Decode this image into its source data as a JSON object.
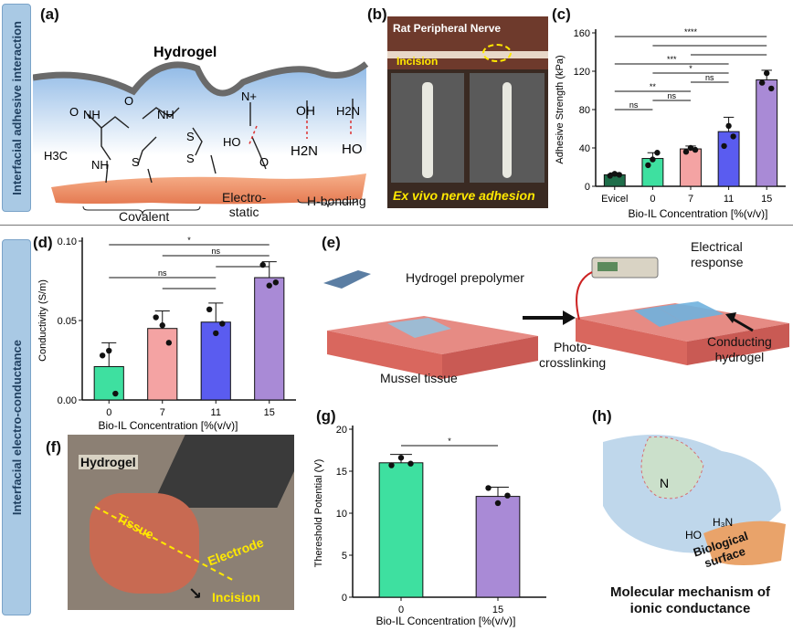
{
  "side_labels": {
    "top": "Interfacial adhesive interaction",
    "bottom": "Interfacial electro-conductance"
  },
  "panels": {
    "a": {
      "label": "(a)",
      "hydrogel": "Hydrogel",
      "covalent": "Covalent",
      "electrostatic": "Electro-\nstatic",
      "hbonding": "H-bonding",
      "atoms": [
        "O",
        "NH",
        "NH",
        "O",
        "H3C",
        "NH",
        "S",
        "S",
        "S",
        "HO",
        "O",
        "N+",
        "OH",
        "H2N",
        "HO",
        "H2N"
      ]
    },
    "b": {
      "label": "(b)",
      "title": "Rat Peripheral Nerve",
      "incision": "Incision",
      "caption": "Ex vivo nerve adhesion"
    },
    "c": {
      "label": "(c)"
    },
    "d": {
      "label": "(d)"
    },
    "e": {
      "label": "(e)",
      "prepolymer": "Hydrogel prepolymer",
      "electrical": "Electrical\nresponse",
      "photo": "Photo-\ncrosslinking",
      "mussel": "Mussel tissue",
      "conducting": "Conducting\nhydrogel"
    },
    "f": {
      "label": "(f)",
      "hydrogel": "Hydrogel",
      "tissue": "Tissue",
      "electrode": "Electrode",
      "incision": "Incision"
    },
    "g": {
      "label": "(g)"
    },
    "h": {
      "label": "(h)",
      "surface": "Biological\nsurface",
      "caption": "Molecular mechanism of\nionic conductance"
    }
  },
  "colors": {
    "green": "#3ee0a0",
    "pink": "#f4a3a3",
    "blue": "#5a5cf0",
    "purple": "#a98ad6",
    "darkgreen": "#1f6e4a"
  },
  "chart_data": [
    {
      "id": "c",
      "type": "bar",
      "categories": [
        "Evicel",
        "0",
        "7",
        "11",
        "15"
      ],
      "values": [
        12,
        29,
        39,
        57,
        111
      ],
      "errors": [
        2,
        6,
        3,
        15,
        10
      ],
      "points": [
        [
          11,
          13,
          12
        ],
        [
          22,
          28,
          35
        ],
        [
          36,
          40,
          38
        ],
        [
          42,
          63,
          52
        ],
        [
          108,
          118,
          102
        ]
      ],
      "colors": [
        "#1f6e4a",
        "#3ee0a0",
        "#f4a3a3",
        "#5a5cf0",
        "#a98ad6"
      ],
      "ylabel": "Adhesive Strength (kPa)",
      "xlabel": "Bio-IL Concentration [%(v/v)]",
      "ylim": [
        0,
        160
      ],
      "yticks": [
        0,
        40,
        80,
        120,
        160
      ],
      "sig": [
        {
          "from": 0,
          "to": 4,
          "text": "****"
        },
        {
          "from": 1,
          "to": 4,
          "text": ""
        },
        {
          "from": 2,
          "to": 4,
          "text": ""
        },
        {
          "from": 0,
          "to": 3,
          "text": "***"
        },
        {
          "from": 1,
          "to": 3,
          "text": "*"
        },
        {
          "from": 2,
          "to": 3,
          "text": "ns"
        },
        {
          "from": 0,
          "to": 2,
          "text": "**"
        },
        {
          "from": 1,
          "to": 2,
          "text": "ns"
        },
        {
          "from": 0,
          "to": 1,
          "text": "ns"
        }
      ]
    },
    {
      "id": "d",
      "type": "bar",
      "categories": [
        "0",
        "7",
        "11",
        "15"
      ],
      "values": [
        0.021,
        0.045,
        0.049,
        0.077
      ],
      "errors": [
        0.015,
        0.011,
        0.012,
        0.01
      ],
      "points": [
        [
          0.028,
          0.031,
          0.004
        ],
        [
          0.052,
          0.047,
          0.036
        ],
        [
          0.057,
          0.042,
          0.048
        ],
        [
          0.085,
          0.072,
          0.074
        ]
      ],
      "colors": [
        "#3ee0a0",
        "#f4a3a3",
        "#5a5cf0",
        "#a98ad6"
      ],
      "ylabel": "Conductivity (S/m)",
      "xlabel": "Bio-IL Concentration [%(v/v)]",
      "ylim": [
        0,
        0.1
      ],
      "yticks": [
        "0.00",
        "0.05",
        "0.10"
      ],
      "sig": [
        {
          "from": 0,
          "to": 3,
          "text": "*"
        },
        {
          "from": 1,
          "to": 3,
          "text": "ns"
        },
        {
          "from": 2,
          "to": 3,
          "text": ""
        },
        {
          "from": 0,
          "to": 2,
          "text": "ns"
        },
        {
          "from": 1,
          "to": 2,
          "text": ""
        }
      ]
    },
    {
      "id": "g",
      "type": "bar",
      "categories": [
        "0",
        "15"
      ],
      "values": [
        16,
        12
      ],
      "errors": [
        1,
        1.1
      ],
      "points": [
        [
          15.7,
          16.6,
          15.9
        ],
        [
          13.0,
          11.2,
          12.1
        ]
      ],
      "colors": [
        "#3ee0a0",
        "#a98ad6"
      ],
      "ylabel": "Thereshold Potential (V)",
      "xlabel": "Bio-IL Concentration [%(v/v)]",
      "ylim": [
        0,
        20
      ],
      "yticks": [
        0,
        5,
        10,
        15,
        20
      ],
      "sig": [
        {
          "from": 0,
          "to": 1,
          "text": "*"
        }
      ]
    }
  ]
}
